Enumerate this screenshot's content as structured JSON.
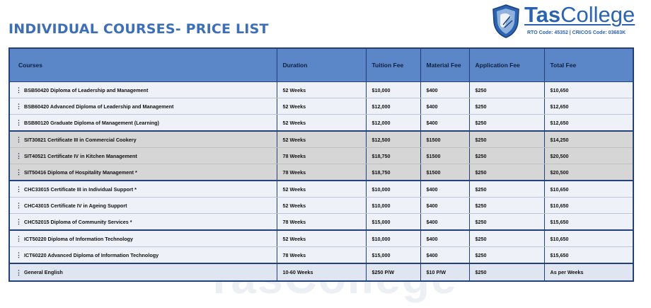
{
  "header": {
    "title": "INDIVIDUAL COURSES- PRICE LIST"
  },
  "logo": {
    "name_part1": "Tas",
    "name_part2": "College",
    "registration": "RTO Code: 45352 | CRICOS Code: 03683K"
  },
  "watermark": "TasCollege",
  "table": {
    "columns": [
      "Courses",
      "Duration",
      "Tuition Fee",
      "Material Fee",
      "Application Fee",
      "Total Fee"
    ],
    "row_marker": "⋮",
    "groups": [
      {
        "tint": "blue",
        "rows": [
          [
            "BSB50420 Diploma of Leadership and Management",
            "52 Weeks",
            "$10,000",
            "$400",
            "$250",
            "$10,650"
          ],
          [
            "BSB60420 Advanced Diploma of Leadership and Management",
            "52 Weeks",
            "$12,000",
            "$400",
            "$250",
            "$12,650"
          ],
          [
            "BSB80120 Graduate Diploma of Management (Learning)",
            "52 Weeks",
            "$12,000",
            "$400",
            "$250",
            "$12,650"
          ]
        ]
      },
      {
        "tint": "grey",
        "rows": [
          [
            "SIT30821 Certificate III in Commercial Cookery",
            "52 Weeks",
            "$12,500",
            "$1500",
            "$250",
            "$14,250"
          ],
          [
            "SIT40521 Certificate IV in Kitchen Management",
            "78 Weeks",
            "$18,750",
            "$1500",
            "$250",
            "$20,500"
          ],
          [
            "SIT50416 Diploma of Hospitality Management *",
            "78 Weeks",
            "$18,750",
            "$1500",
            "$250",
            "$20,500"
          ]
        ]
      },
      {
        "tint": "blue",
        "rows": [
          [
            "CHC33015 Certificate III in Individual Support *",
            "52 Weeks",
            "$10,000",
            "$400",
            "$250",
            "$10,650"
          ],
          [
            "CHC43015 Certificate IV in Ageing Support",
            "52 Weeks",
            "$10,000",
            "$400",
            "$250",
            "$10,650"
          ],
          [
            "CHC52015 Diploma of Community Services *",
            "78 Weeks",
            "$15,000",
            "$400",
            "$250",
            "$15,650"
          ]
        ]
      },
      {
        "tint": "blue",
        "rows": [
          [
            "ICT50220 Diploma of Information Technology",
            "52 Weeks",
            "$10,000",
            "$400",
            "$250",
            "$10,650"
          ],
          [
            "ICT60220 Advanced Diploma of Information Technology",
            "78 Weeks",
            "$15,000",
            "$400",
            "$250",
            "$15,650"
          ]
        ]
      },
      {
        "tint": "last",
        "rows": [
          [
            "General English",
            "10-60 Weeks",
            "$250 P/W",
            "$10 P/W",
            "$250",
            "As per Weeks"
          ]
        ]
      }
    ]
  },
  "colors": {
    "title_blue": "#3d6fb6",
    "header_blue": "#5b87c9",
    "border_navy": "#24407c",
    "grey_band": "#d6d6d6"
  }
}
